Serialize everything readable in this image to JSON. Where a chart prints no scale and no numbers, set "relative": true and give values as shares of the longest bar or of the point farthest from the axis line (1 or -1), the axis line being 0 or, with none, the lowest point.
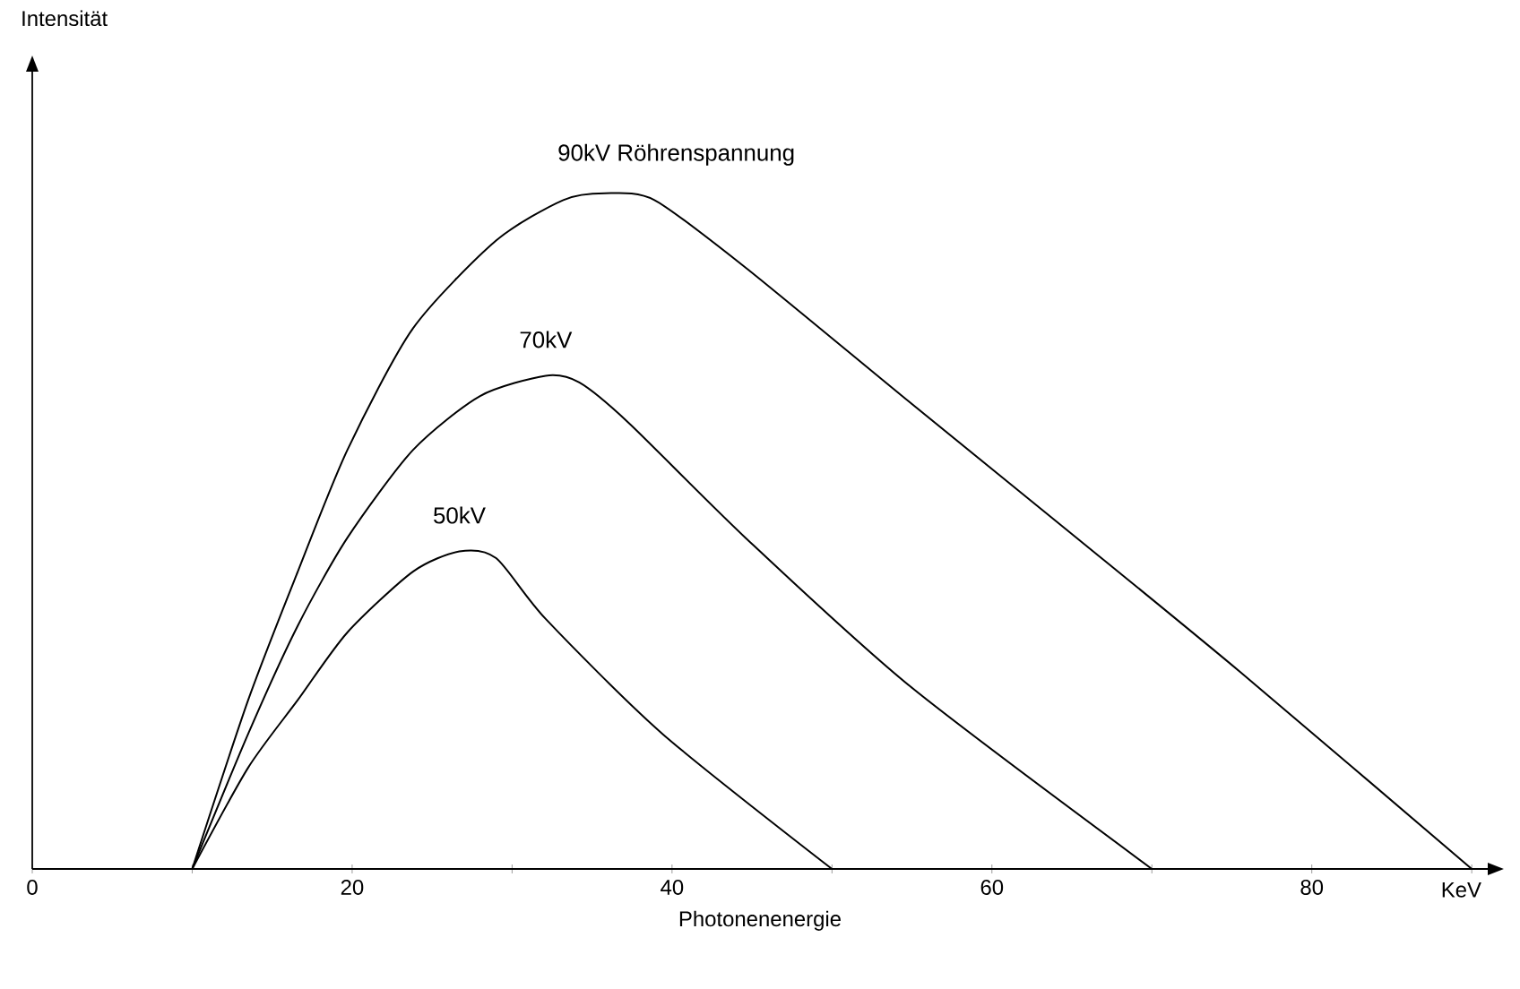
{
  "chart_data": {
    "type": "line",
    "relative": true,
    "xlabel": "Photonenenergie",
    "xlim": [
      0,
      91
    ],
    "xticks": [
      0,
      {
        "value": 10,
        "label": null
      },
      20,
      {
        "value": 30,
        "label": null
      },
      40,
      {
        "value": 50,
        "label": null
      },
      60,
      {
        "value": 70,
        "label": null
      },
      80,
      {
        "value": 90,
        "label": null
      }
    ],
    "annotations": [
      "KeV",
      "Intensität"
    ],
    "marker": "none",
    "line_style": "solid",
    "series": [
      {
        "name": "90kV Röhrenspannung",
        "color": "#000000",
        "x": [
          10,
          13.5,
          16.6,
          19.7,
          23.8,
          29.0,
          33.2,
          35.8,
          38.9,
          44.6,
          54.9,
          65.3,
          75.6,
          90
        ],
        "values": [
          0,
          0.25,
          0.44,
          0.62,
          0.8,
          0.93,
          0.99,
          1,
          0.99,
          0.89,
          0.69,
          0.49,
          0.29,
          0
        ]
      },
      {
        "name": "70kV",
        "color": "#000000",
        "x": [
          10,
          13.5,
          16.6,
          19.7,
          23.8,
          28.0,
          32.1,
          34.2,
          37.3,
          44.6,
          54.9,
          70
        ],
        "values": [
          0,
          0.2,
          0.36,
          0.49,
          0.62,
          0.7,
          0.73,
          0.72,
          0.66,
          0.49,
          0.27,
          0
        ]
      },
      {
        "name": "50kV",
        "color": "#000000",
        "x": [
          10,
          13.5,
          16.6,
          19.7,
          23.8,
          26.7,
          29.0,
          32.1,
          39.4,
          50
        ],
        "values": [
          0,
          0.15,
          0.25,
          0.35,
          0.44,
          0.47,
          0.46,
          0.37,
          0.2,
          0
        ]
      }
    ]
  }
}
